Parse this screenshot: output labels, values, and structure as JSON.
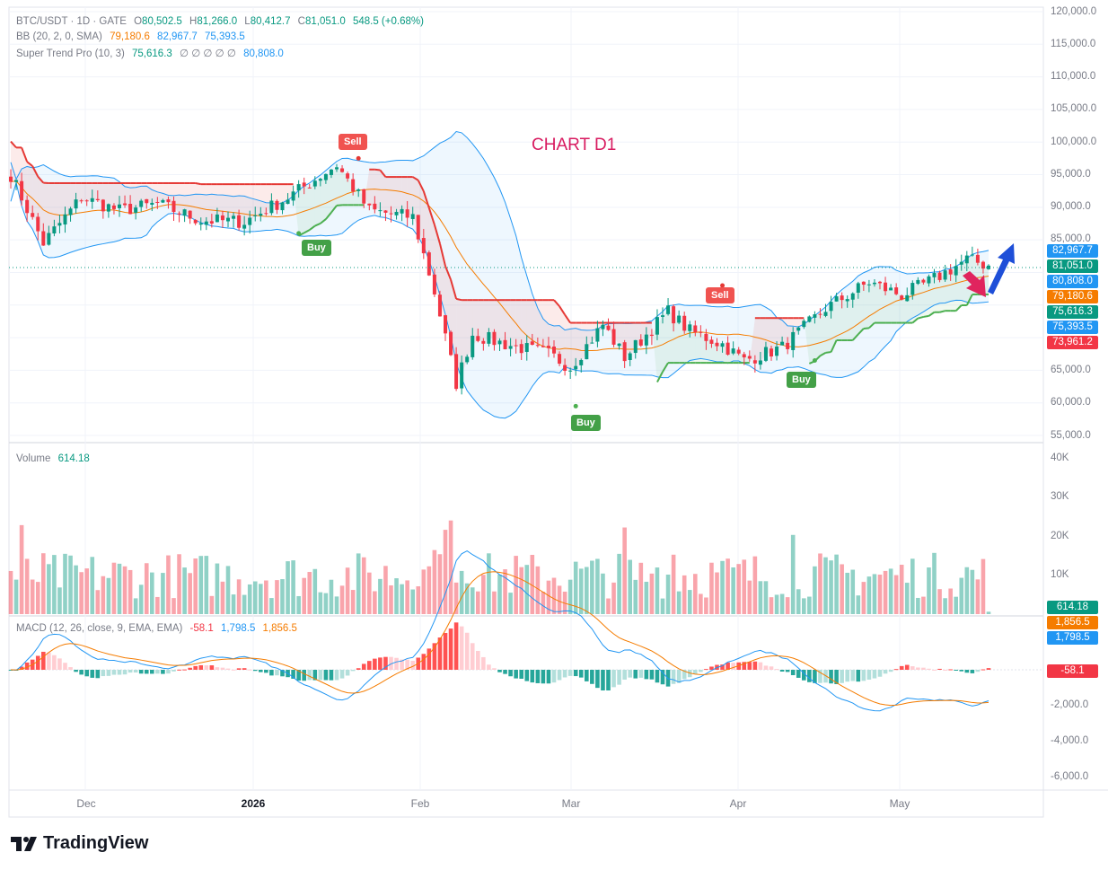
{
  "legend": {
    "symbol": "BTC/USDT · 1D · GATE",
    "o_label": "O",
    "o": "80,502.5",
    "h_label": "H",
    "h": "81,266.0",
    "l_label": "L",
    "l": "80,412.7",
    "c_label": "C",
    "c": "81,051.0",
    "change": "548.5 (+0.68%)",
    "bb_label": "BB (20, 2, 0, SMA)",
    "bb_basis": "79,180.6",
    "bb_upper": "82,967.7",
    "bb_lower": "75,393.5",
    "st_label": "Super Trend Pro (10, 3)",
    "st_value": "75,616.3",
    "st_zeros": "∅ ∅ ∅ ∅ ∅",
    "st_value2": "80,808.0",
    "vol_label": "Volume",
    "vol_value": "614.18",
    "macd_label": "MACD (12, 26, close, 9, EMA, EMA)",
    "macd_hist": "-58.1",
    "macd_line": "1,798.5",
    "macd_signal": "1,856.5"
  },
  "annotation": "CHART D1",
  "signals": {
    "sell": "Sell",
    "buy": "Buy"
  },
  "price_tags": [
    {
      "label": "82,967.7",
      "color": "#2196f3"
    },
    {
      "label": "81,051.0",
      "color": "#089981"
    },
    {
      "label": "80,808.0",
      "color": "#2196f3"
    },
    {
      "label": "79,180.6",
      "color": "#f57c00"
    },
    {
      "label": "75,616.3",
      "color": "#089981"
    },
    {
      "label": "75,393.5",
      "color": "#2196f3"
    },
    {
      "label": "73,961.2",
      "color": "#f23645"
    }
  ],
  "vol_tag": "614.18",
  "macd_tags": [
    {
      "label": "1,856.5",
      "color": "#f57c00"
    },
    {
      "label": "1,798.5",
      "color": "#2196f3"
    },
    {
      "label": "-58.1",
      "color": "#f23645"
    }
  ],
  "price_axis": [
    "120,000.0",
    "115,000.0",
    "110,000.0",
    "105,000.0",
    "100,000.0",
    "95,000.0",
    "90,000.0",
    "85,000.0",
    "65,000.0",
    "60,000.0",
    "55,000.0"
  ],
  "volume_axis": [
    "40K",
    "30K",
    "20K",
    "10K"
  ],
  "macd_axis": [
    "-2,000.0",
    "-4,000.0",
    "-6,000.0"
  ],
  "time_axis": [
    "Dec",
    "2026",
    "Feb",
    "Mar",
    "Apr",
    "May"
  ],
  "brand": "TradingView",
  "colors": {
    "up": "#089981",
    "down": "#f23645",
    "bb_basis": "#f57c00",
    "bb_band": "#2196f3",
    "st_up": "#4caf50",
    "st_down": "#e53935",
    "macd": "#2196f3",
    "signal": "#f57c00"
  },
  "chart_data": {
    "type": "candlestick",
    "xlabels": [
      "Dec",
      "2026",
      "Feb",
      "Mar",
      "Apr",
      "May"
    ],
    "ylim_price": [
      55000,
      120000
    ],
    "ylim_volume": [
      0,
      40000
    ],
    "ylim_macd": [
      -6500,
      1500
    ],
    "close_path": [
      {
        "date": "2025-11-15",
        "close": 95000
      },
      {
        "date": "2025-11-21",
        "close": 84500
      },
      {
        "date": "2025-11-28",
        "close": 91500
      },
      {
        "date": "2025-12-05",
        "close": 89500
      },
      {
        "date": "2025-12-12",
        "close": 90500
      },
      {
        "date": "2025-12-20",
        "close": 88000
      },
      {
        "date": "2025-12-28",
        "close": 87800
      },
      {
        "date": "2026-01-05",
        "close": 91500
      },
      {
        "date": "2026-01-14",
        "close": 96500
      },
      {
        "date": "2026-01-20",
        "close": 89500
      },
      {
        "date": "2026-01-28",
        "close": 88500
      },
      {
        "date": "2026-02-01",
        "close": 77000
      },
      {
        "date": "2026-02-05",
        "close": 63000
      },
      {
        "date": "2026-02-08",
        "close": 70500
      },
      {
        "date": "2026-02-14",
        "close": 69000
      },
      {
        "date": "2026-02-22",
        "close": 67500
      },
      {
        "date": "2026-02-26",
        "close": 65500
      },
      {
        "date": "2026-03-04",
        "close": 72000
      },
      {
        "date": "2026-03-08",
        "close": 67000
      },
      {
        "date": "2026-03-16",
        "close": 74000
      },
      {
        "date": "2026-03-20",
        "close": 71000
      },
      {
        "date": "2026-03-26",
        "close": 69000
      },
      {
        "date": "2026-03-30",
        "close": 66500
      },
      {
        "date": "2026-04-06",
        "close": 68500
      },
      {
        "date": "2026-04-14",
        "close": 74500
      },
      {
        "date": "2026-04-22",
        "close": 78500
      },
      {
        "date": "2026-04-28",
        "close": 76500
      },
      {
        "date": "2026-05-04",
        "close": 79000
      },
      {
        "date": "2026-05-10",
        "close": 82000
      },
      {
        "date": "2026-05-14",
        "close": 81051
      }
    ],
    "last": {
      "open": 80502.5,
      "high": 81266.0,
      "low": 80412.7,
      "close": 81051.0
    },
    "bb": {
      "basis": 79180.6,
      "upper": 82967.7,
      "lower": 75393.5
    },
    "supertrend": 75616.3,
    "volume_last": 614.18,
    "macd_last": {
      "macd": 1798.5,
      "signal": 1856.5,
      "hist": -58.1
    },
    "signals": [
      {
        "type": "Buy",
        "date": "2026-01-07",
        "price": 86000
      },
      {
        "type": "Sell",
        "date": "2026-01-18",
        "price": 97500
      },
      {
        "type": "Buy",
        "date": "2026-02-27",
        "price": 59500
      },
      {
        "type": "Sell",
        "date": "2026-03-26",
        "price": 78000
      },
      {
        "type": "Buy",
        "date": "2026-04-12",
        "price": 66500
      }
    ]
  }
}
